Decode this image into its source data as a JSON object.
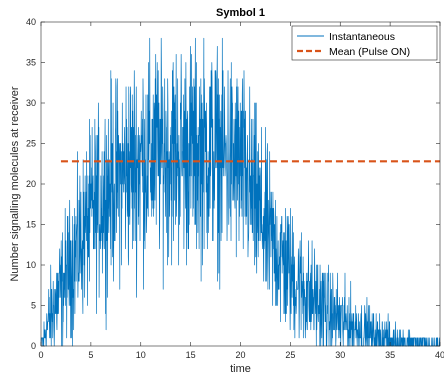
{
  "chart_data": {
    "type": "line",
    "title": "Symbol 1",
    "xlabel": "time",
    "ylabel": "Number signalling molecules at receiver",
    "xlim": [
      0,
      40
    ],
    "ylim": [
      0,
      40
    ],
    "x_ticks": [
      "0",
      "5",
      "10",
      "15",
      "20",
      "25",
      "30",
      "35",
      "40"
    ],
    "y_ticks": [
      "0",
      "5",
      "10",
      "15",
      "20",
      "25",
      "30",
      "35",
      "40"
    ],
    "grid": false,
    "legend_position": "top-right",
    "series": [
      {
        "name": "Instantaneous",
        "style": "solid",
        "color": "#0072BD",
        "x": [
          0,
          1,
          2,
          3,
          4,
          5,
          6,
          7,
          8,
          9,
          10,
          11,
          12,
          13,
          14,
          15,
          16,
          17,
          18,
          19,
          20,
          21,
          22,
          23,
          24,
          25,
          26,
          27,
          28,
          29,
          30,
          31,
          32,
          33,
          34,
          35,
          36,
          37,
          38,
          39,
          40
        ],
        "y": [
          0,
          4,
          7,
          10,
          13,
          16,
          18,
          20,
          21,
          22,
          23,
          23.5,
          24,
          24,
          24,
          24,
          24,
          24,
          23.5,
          23,
          22,
          19,
          16,
          13,
          11,
          9,
          7.5,
          6,
          5,
          4,
          3.2,
          2.5,
          2,
          1.5,
          1.1,
          0.8,
          0.6,
          0.4,
          0.3,
          0.2,
          0.1
        ]
      },
      {
        "name": "Mean (Pulse ON)",
        "style": "dashed",
        "color": "#D95319",
        "x": [
          2,
          40
        ],
        "y": [
          22.8,
          22.8
        ]
      }
    ]
  }
}
